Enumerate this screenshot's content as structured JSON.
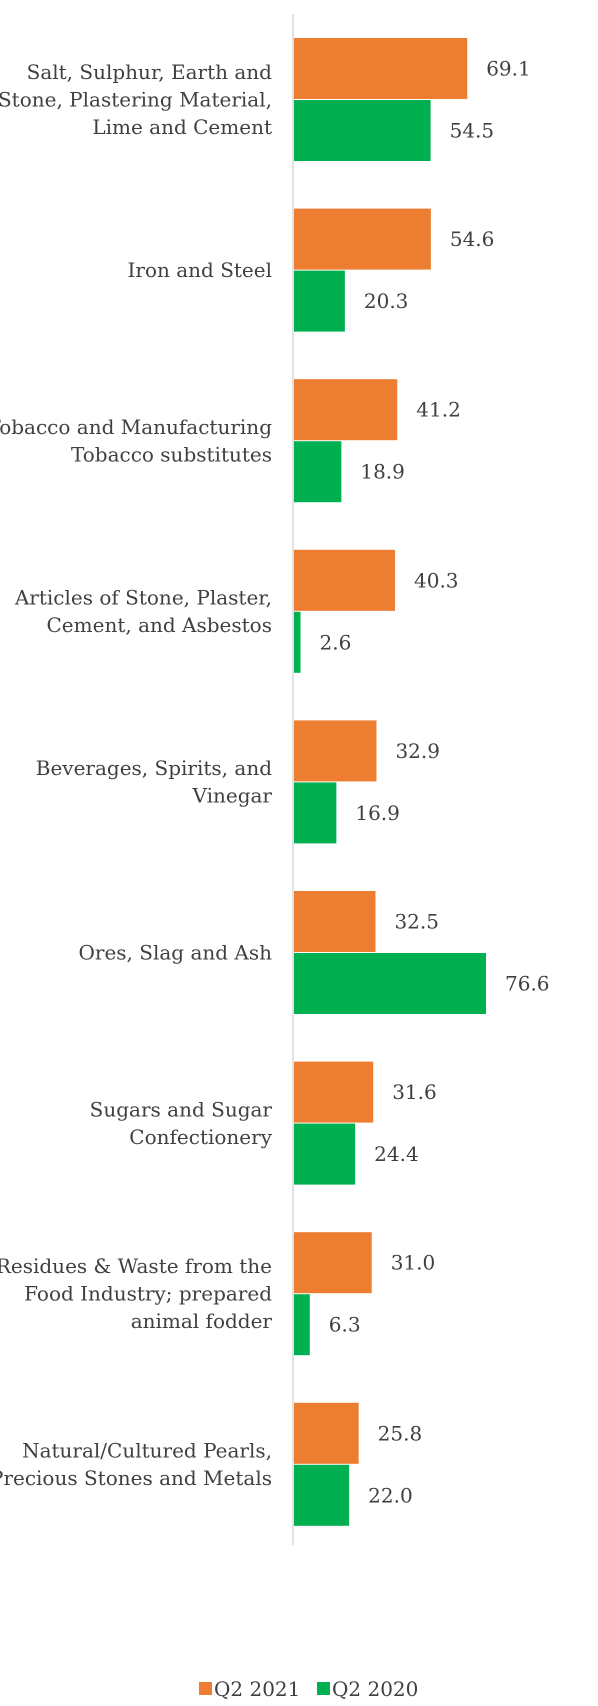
{
  "chart_data": {
    "type": "bar",
    "orientation": "horizontal",
    "categories": [
      [
        "Salt, Sulphur, Earth and",
        "Stone, Plastering Material,",
        "Lime and Cement"
      ],
      [
        "Iron and Steel"
      ],
      [
        "Tobacco and Manufacturing",
        "Tobacco substitutes"
      ],
      [
        "Articles of Stone, Plaster,",
        "Cement, and Asbestos"
      ],
      [
        "Beverages, Spirits, and",
        "Vinegar"
      ],
      [
        "Ores, Slag and Ash"
      ],
      [
        "Sugars and Sugar",
        "Confectionery"
      ],
      [
        "Residues & Waste from the",
        "Food Industry; prepared",
        "animal fodder"
      ],
      [
        "Natural/Cultured Pearls,",
        "Precious Stones and Metals"
      ]
    ],
    "series": [
      {
        "name": "Q2 2021",
        "color": "#ED7D31",
        "values": [
          69.1,
          54.6,
          41.2,
          40.3,
          32.9,
          32.5,
          31.6,
          31.0,
          25.8
        ],
        "labels": [
          "69.1",
          "54.6",
          "41.2",
          "40.3",
          "32.9",
          "32.5",
          "31.6",
          "31.0",
          "25.8"
        ]
      },
      {
        "name": "Q2 2020",
        "color": "#00B050",
        "values": [
          54.5,
          20.3,
          18.9,
          2.6,
          16.9,
          76.6,
          24.4,
          6.3,
          22.0
        ],
        "labels": [
          "54.5",
          "20.3",
          "18.9",
          "2.6",
          "16.9",
          "76.6",
          "24.4",
          "6.3",
          "22.0"
        ]
      }
    ],
    "xlim": [
      0,
      80
    ],
    "axis_line_color": "#D9D9D9",
    "grid": false,
    "legend_position": "bottom"
  }
}
